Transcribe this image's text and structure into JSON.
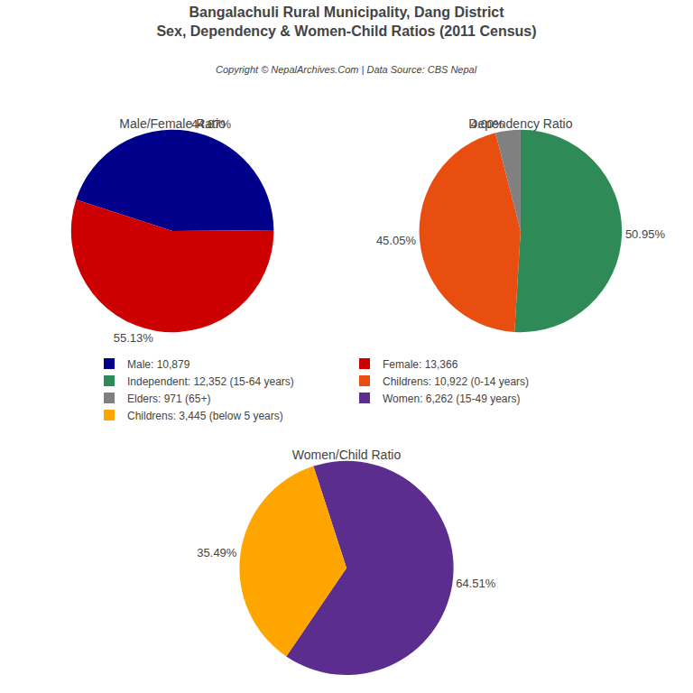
{
  "title": "Bangalachuli Rural Municipality, Dang District",
  "subtitle": "Sex, Dependency & Women-Child Ratios (2011 Census)",
  "annotations": [
    "Copyright © NepalArchives.Com | Data Source: CBS Nepal"
  ],
  "legend": "center",
  "chart_data": [
    {
      "type": "pie",
      "title": "Male/Female Ratio",
      "categories": [
        "Male: 10,879",
        "Female: 13,366"
      ],
      "values": [
        44.87,
        55.13
      ],
      "value_labels": [
        "44.87%",
        "55.13%"
      ],
      "colors": [
        "#00008B",
        "#CC0000"
      ],
      "data_labels": true
    },
    {
      "type": "pie",
      "title": "Dependency Ratio",
      "categories": [
        "Independent: 12,352 (15-64 years)",
        "Childrens: 10,922 (0-14 years)",
        "Elders: 971 (65+)"
      ],
      "values": [
        50.95,
        45.05,
        4.0
      ],
      "value_labels": [
        "50.95%",
        "45.05%",
        "4.00%"
      ],
      "colors": [
        "#2E8B57",
        "#E84E0F",
        "#808080"
      ],
      "data_labels": true
    },
    {
      "type": "pie",
      "title": "Women/Child Ratio",
      "categories": [
        "Women: 6,262 (15-49 years)",
        "Childrens: 3,445 (below 5 years)"
      ],
      "values": [
        64.51,
        35.49
      ],
      "value_labels": [
        "64.51%",
        "35.49%"
      ],
      "colors": [
        "#5B2D8E",
        "#FFA500"
      ],
      "data_labels": true
    }
  ]
}
